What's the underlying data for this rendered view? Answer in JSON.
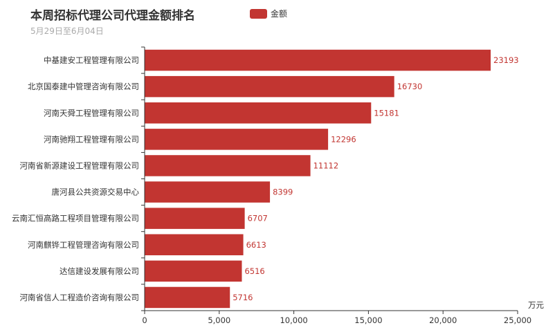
{
  "chart_data": {
    "type": "bar",
    "orientation": "horizontal",
    "title": "本周招标代理公司代理金额排名",
    "subtitle": "5月29日至6月04日",
    "legend": {
      "entries": [
        "金额"
      ],
      "placement": "top-center"
    },
    "categories": [
      "中基建安工程管理有限公司",
      "北京国泰建中管理咨询有限公司",
      "河南天舜工程管理有限公司",
      "河南驰翔工程管理有限公司",
      "河南省新源建设工程管理有限公司",
      "唐河县公共资源交易中心",
      "云南汇恒高路工程项目管理有限公司",
      "河南麒铧工程管理咨询有限公司",
      "达信建设发展有限公司",
      "河南省信人工程造价咨询有限公司"
    ],
    "series": [
      {
        "name": "金额",
        "values": [
          23193,
          16730,
          15181,
          12296,
          11112,
          8399,
          6707,
          6613,
          6516,
          5716
        ]
      }
    ],
    "data_labels": [
      "23193",
      "16730",
      "15181",
      "12296",
      "11112",
      "8399",
      "6707",
      "6613",
      "6516",
      "5716"
    ],
    "xlim": [
      0,
      25000
    ],
    "xticks": [
      0,
      5000,
      10000,
      15000,
      20000,
      25000
    ],
    "xtick_labels": [
      "0",
      "5,000",
      "10,000",
      "15,000",
      "20,000",
      "25,000"
    ],
    "xunit": "万元",
    "grid": false,
    "colors": {
      "bar": "#c23531",
      "text": "#333333",
      "subtitle": "#aaaaaa",
      "axis": "#333333"
    }
  }
}
